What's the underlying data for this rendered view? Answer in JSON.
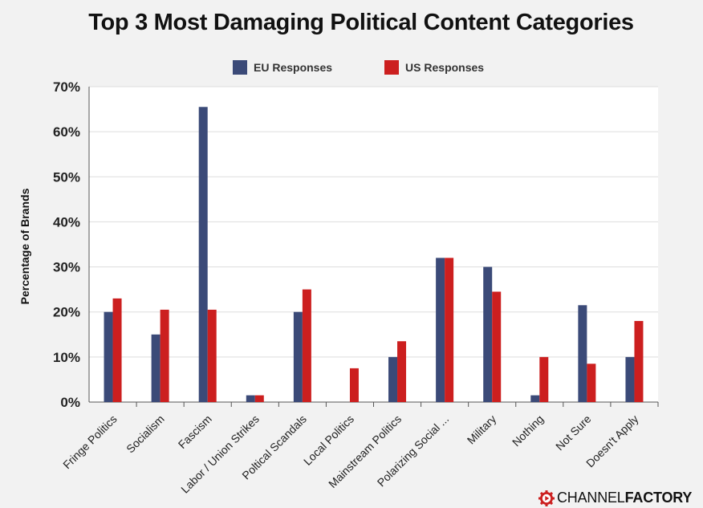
{
  "title": "Top 3 Most Damaging Political Content Categories",
  "logo": {
    "part1": "CHANNEL",
    "part2": "FACTORY"
  },
  "colors": {
    "eu": "#3b4a78",
    "us": "#cc1f1f",
    "grid": "#dddddd",
    "plot_bg": "#ffffff"
  },
  "chart_data": {
    "type": "bar",
    "title": "Top 3 Most Damaging Political Content Categories",
    "ylabel": "Percentage of Brands",
    "xlabel": "",
    "ylim": [
      0,
      70
    ],
    "yticks": [
      "0%",
      "10%",
      "20%",
      "30%",
      "40%",
      "50%",
      "60%",
      "70%"
    ],
    "legend_position": "top-center",
    "grid": true,
    "categories": [
      "Fringe Politics",
      "Socialism",
      "Fascism",
      "Labor / Union Strikes",
      "Poltical Scandals",
      "Local Politics",
      "Mainstream Politics",
      "Polarizing Social ...",
      "Military",
      "Nothing",
      "Not Sure",
      "Doesn't Apply"
    ],
    "series": [
      {
        "name": "EU Responses",
        "color": "#3b4a78",
        "values": [
          20,
          15,
          65.5,
          1.5,
          20,
          0,
          10,
          32,
          30,
          1.5,
          21.5,
          10
        ]
      },
      {
        "name": "US Responses",
        "color": "#cc1f1f",
        "values": [
          23,
          20.5,
          20.5,
          1.5,
          25,
          7.5,
          13.5,
          32,
          24.5,
          10,
          8.5,
          18
        ]
      }
    ]
  }
}
